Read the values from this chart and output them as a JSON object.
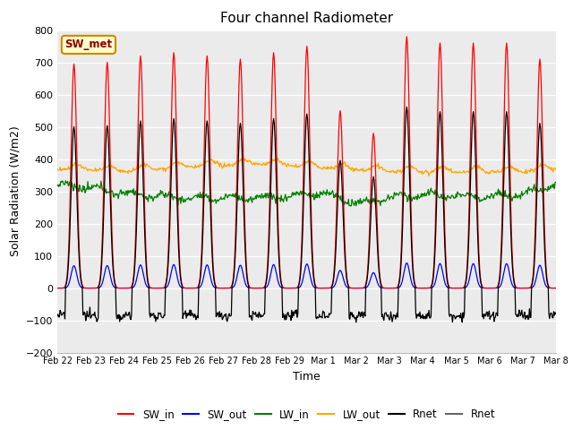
{
  "title": "Four channel Radiometer",
  "xlabel": "Time",
  "ylabel": "Solar Radiation (W/m2)",
  "ylim": [
    -200,
    800
  ],
  "yticks": [
    -200,
    -100,
    0,
    100,
    200,
    300,
    400,
    500,
    600,
    700,
    800
  ],
  "bg_color": "#ebebeb",
  "legend_entries": [
    {
      "label": "SW_in",
      "color": "red"
    },
    {
      "label": "SW_out",
      "color": "blue"
    },
    {
      "label": "LW_in",
      "color": "green"
    },
    {
      "label": "LW_out",
      "color": "orange"
    },
    {
      "label": "Rnet",
      "color": "black"
    },
    {
      "label": "Rnet",
      "color": "#666666"
    }
  ],
  "annotation_text": "SW_met",
  "annotation_bg": "#ffffcc",
  "annotation_border": "#cc8800",
  "date_labels": [
    "Feb 22",
    "Feb 23",
    "Feb 24",
    "Feb 25",
    "Feb 26",
    "Feb 27",
    "Feb 28",
    "Feb 29",
    "Mar 1",
    "Mar 2",
    "Mar 3",
    "Mar 4",
    "Mar 5",
    "Mar 6",
    "Mar 7",
    "Mar 8"
  ],
  "sw_in_peaks": [
    695,
    700,
    720,
    730,
    720,
    710,
    730,
    750,
    550,
    480,
    780,
    760,
    760,
    760,
    710
  ],
  "sw_out_factor": 0.1,
  "lw_in_base": 295,
  "lw_out_base": 370,
  "rnet_night": -85,
  "rnet_factor": 0.72
}
